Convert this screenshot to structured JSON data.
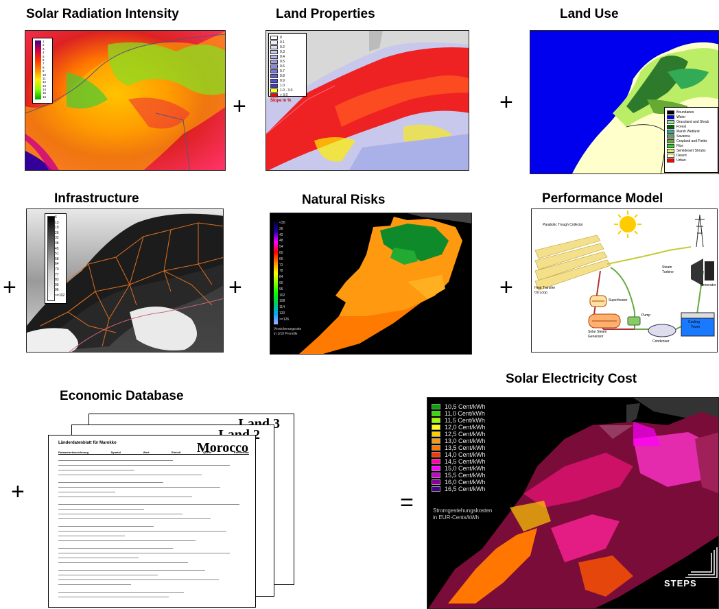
{
  "panels": {
    "solar_radiation": {
      "title": "Solar Radiation Intensity",
      "legend_ticks": [
        "1",
        "2",
        "3",
        "4",
        "5",
        "6",
        "7",
        "8",
        "9",
        "10",
        "11",
        "12",
        "13",
        "14",
        "15",
        "16"
      ]
    },
    "land_properties": {
      "title": "Land Properties",
      "legend_items": [
        {
          "label": "0",
          "color": "#ffffff"
        },
        {
          "label": "0.1",
          "color": "#eeeefa"
        },
        {
          "label": "0.2",
          "color": "#dcdcf5"
        },
        {
          "label": "0.3",
          "color": "#c8c8f0"
        },
        {
          "label": "0.4",
          "color": "#b4b4eb"
        },
        {
          "label": "0.5",
          "color": "#a0a0e6"
        },
        {
          "label": "0.6",
          "color": "#8c8ce1"
        },
        {
          "label": "0.7",
          "color": "#7878dc"
        },
        {
          "label": "0.8",
          "color": "#6464d7"
        },
        {
          "label": "0.9",
          "color": "#5050d2"
        },
        {
          "label": "1.0",
          "color": "#3c3ccd"
        },
        {
          "label": "1.0 - 3.0",
          "color": "#ffff00"
        },
        {
          "label": "> 3.0",
          "color": "#ff0000"
        }
      ],
      "legend_caption": "Slope in %"
    },
    "land_use": {
      "title": "Land Use",
      "legend_items": [
        {
          "label": "Boundaries",
          "color": "#000000"
        },
        {
          "label": "Water",
          "color": "#0000ff"
        },
        {
          "label": "Grassland and Shrub",
          "color": "#99dd99"
        },
        {
          "label": "Forest",
          "color": "#006600"
        },
        {
          "label": "Marsh Wetland",
          "color": "#33aa99"
        },
        {
          "label": "Savanna",
          "color": "#669966"
        },
        {
          "label": "Cropland and Fields",
          "color": "#66aa33"
        },
        {
          "label": "Rice",
          "color": "#33cc33"
        },
        {
          "label": "Semidesert Shrubs",
          "color": "#ddee66"
        },
        {
          "label": "Desert",
          "color": "#ffffcc"
        },
        {
          "label": "Urban",
          "color": "#ff0000"
        }
      ]
    },
    "infrastructure": {
      "title": "Infrastructure",
      "legend_ticks": [
        "6",
        "13",
        "19",
        "26",
        "32",
        "38",
        "45",
        "51",
        "58",
        "64",
        "70",
        "77",
        "83",
        "90",
        "96",
        ">=102"
      ]
    },
    "natural_risks": {
      "title": "Natural Risks",
      "legend_ticks": [
        "<30",
        "36",
        "42",
        "48",
        "54",
        "60",
        "66",
        "72",
        "78",
        "84",
        "90",
        "96",
        "102",
        "108",
        "114",
        "120",
        ">=126"
      ],
      "legend_caption_1": "Versicherungsrate",
      "legend_caption_2": "in 1/10 Promille"
    },
    "performance_model": {
      "title": "Performance Model",
      "labels": {
        "collector": "Parabolic Trough Collector",
        "heat_transfer": "Heat Transfer",
        "oil_loop": "Oil Loop",
        "superheater": "Superheater",
        "pump": "Pump",
        "steam_gen_1": "Solar Steam",
        "steam_gen_2": "Generator",
        "condenser": "Condenser",
        "steam_turbine_1": "Steam",
        "steam_turbine_2": "Turbine",
        "generator": "Generator",
        "cooling_1": "Cooling",
        "cooling_2": "Tower"
      }
    },
    "economic_database": {
      "title": "Economic Database",
      "sheet_back": "Land 3",
      "sheet_mid": "Land 2",
      "sheet_front": "Morocco",
      "sheet_header": "Länderdatenblatt für Marokko",
      "columns": [
        "Parameterbezeichnung",
        "Symbol",
        "Wert",
        "Einheit",
        "Quelle",
        "Kommentar"
      ]
    },
    "solar_cost": {
      "title": "Solar Electricity Cost",
      "legend_items": [
        {
          "label": "10,5 Cent/kWh",
          "color": "#00aa00"
        },
        {
          "label": "11,0 Cent/kWh",
          "color": "#33dd00"
        },
        {
          "label": "11,5 Cent/kWh",
          "color": "#99ff00"
        },
        {
          "label": "12,0 Cent/kWh",
          "color": "#ffff00"
        },
        {
          "label": "12,5 Cent/kWh",
          "color": "#ffcc00"
        },
        {
          "label": "13,0 Cent/kWh",
          "color": "#ff9900"
        },
        {
          "label": "13,5 Cent/kWh",
          "color": "#ff7700"
        },
        {
          "label": "14,0 Cent/kWh",
          "color": "#ff3300"
        },
        {
          "label": "14,5 Cent/kWh",
          "color": "#ff00aa"
        },
        {
          "label": "15,0 Cent/kWh",
          "color": "#ff00ff"
        },
        {
          "label": "15,5 Cent/kWh",
          "color": "#cc00cc"
        },
        {
          "label": "16,0 Cent/kWh",
          "color": "#880099"
        },
        {
          "label": "16,5 Cent/kWh",
          "color": "#440088"
        }
      ],
      "caption_1": "Stromgestehungskosten",
      "caption_2": "in EUR-Cents/kWh",
      "logo": "STEPS"
    }
  },
  "operators": {
    "plus": "+",
    "equals": "="
  }
}
